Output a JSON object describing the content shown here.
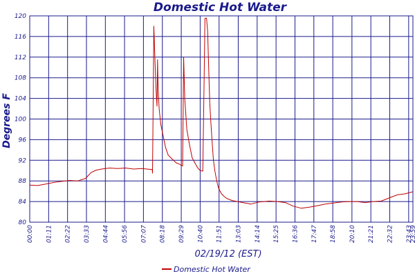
{
  "chart_data": {
    "type": "line",
    "title": "Domestic Hot Water",
    "xlabel": "02/19/12 (EST)",
    "ylabel": "Degrees F",
    "ylim": [
      80,
      120
    ],
    "yticks": [
      "80",
      "84",
      "88",
      "92",
      "96",
      "100",
      "104",
      "108",
      "112",
      "116",
      "120"
    ],
    "xticks": [
      "00:00",
      "01:11",
      "02:22",
      "03:33",
      "04:44",
      "05:56",
      "07:07",
      "08:18",
      "09:29",
      "10:40",
      "11:51",
      "13:03",
      "14:14",
      "15:25",
      "16:36",
      "17:47",
      "18:58",
      "20:10",
      "21:21",
      "22:32",
      "23:43",
      "23:59"
    ],
    "grid": true,
    "legend": "bottom-center",
    "series": [
      {
        "name": "Domestic Hot Water",
        "color": "#c00000",
        "x_minutes": [
          0,
          30,
          60,
          90,
          120,
          150,
          180,
          210,
          230,
          250,
          270,
          300,
          330,
          360,
          390,
          420,
          440,
          460,
          461,
          463,
          466,
          470,
          474,
          478,
          480,
          482,
          486,
          492,
          500,
          510,
          520,
          530,
          540,
          550,
          560,
          570,
          574,
          576,
          578,
          582,
          590,
          600,
          610,
          620,
          630,
          640,
          650,
          656,
          658,
          660,
          662,
          664,
          668,
          672,
          676,
          680,
          685,
          690,
          695,
          700,
          705,
          710,
          720,
          730,
          740,
          760,
          780,
          800,
          830,
          860,
          900,
          930,
          960,
          990,
          1020,
          1050,
          1080,
          1110,
          1140,
          1170,
          1200,
          1230,
          1260,
          1290,
          1320,
          1350,
          1380,
          1410,
          1439
        ],
        "y": [
          87.2,
          87.1,
          87.4,
          87.7,
          87.9,
          88.1,
          88.0,
          88.5,
          89.6,
          90.1,
          90.3,
          90.5,
          90.4,
          90.5,
          90.3,
          90.4,
          90.3,
          90.2,
          89.5,
          101.0,
          118.0,
          112.0,
          106.0,
          102.5,
          111.5,
          106.0,
          102.0,
          99.0,
          97.0,
          94.5,
          93.0,
          92.5,
          92.0,
          91.5,
          91.3,
          91.0,
          90.9,
          101.0,
          112.0,
          104.0,
          98.0,
          95.0,
          92.5,
          91.5,
          90.6,
          90.0,
          89.9,
          112.0,
          119.5,
          119.5,
          119.6,
          119.5,
          117.0,
          110.0,
          103.0,
          99.5,
          95.5,
          92.0,
          90.0,
          88.6,
          87.4,
          86.5,
          85.5,
          85.0,
          84.6,
          84.2,
          84.0,
          83.8,
          83.5,
          83.9,
          84.1,
          84.0,
          83.8,
          83.1,
          82.7,
          82.9,
          83.2,
          83.5,
          83.7,
          83.9,
          84.0,
          84.0,
          83.8,
          84.0,
          84.1,
          84.7,
          85.3,
          85.5,
          85.9
        ]
      }
    ]
  }
}
